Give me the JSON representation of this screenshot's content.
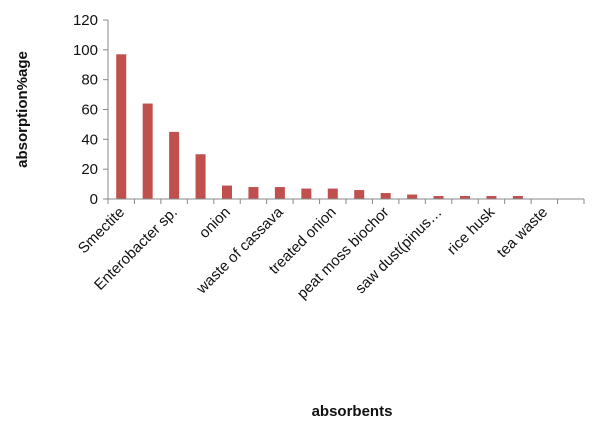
{
  "chart_data": {
    "type": "bar",
    "title": "",
    "xlabel": "absorbents",
    "ylabel": "absorption%age",
    "ylim": [
      0,
      120
    ],
    "yticks": [
      0,
      20,
      40,
      60,
      80,
      100,
      120
    ],
    "grid": false,
    "legend": "none",
    "bar_color": "#c0504d",
    "categories": [
      "Smectite",
      "",
      "Enterobacter sp.",
      "",
      "onion",
      "",
      "waste of cassava",
      "",
      "treated onion",
      "",
      "peat moss biochor",
      "",
      "saw dust(pinus…",
      "",
      "rice husk",
      "",
      "tea waste",
      ""
    ],
    "values": [
      97,
      64,
      45,
      30,
      9,
      8,
      8,
      7,
      7,
      6,
      4,
      3,
      2,
      2,
      2,
      2,
      0,
      0
    ]
  }
}
